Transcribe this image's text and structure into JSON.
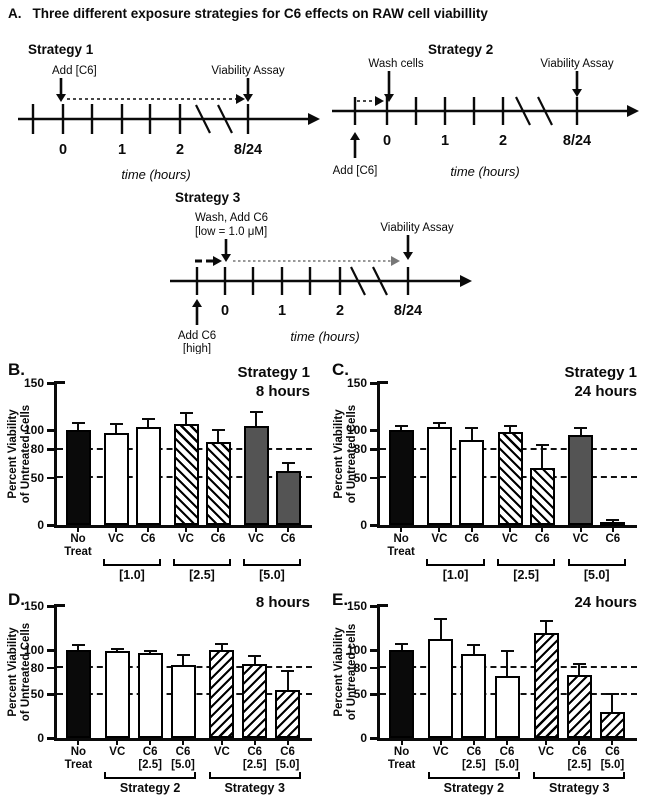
{
  "colors": {
    "bar_gray": "#545454",
    "ink": "#0a0a0a",
    "dotted_arrow_gray": "#777777"
  },
  "figure": {
    "panel_a": {
      "letter": "A.",
      "title": "Three different exposure strategies for C6 effects on RAW cell viabillity",
      "strategy1": {
        "name": "Strategy 1",
        "add_label": "Add [C6]",
        "assay_label": "Viability Assay",
        "ticks": [
          "0",
          "1",
          "2",
          "8/24"
        ],
        "xlabel": "time (hours)"
      },
      "strategy2": {
        "name": "Strategy 2",
        "wash_label": "Wash cells",
        "add_label": "Add [C6]",
        "assay_label": "Viability Assay",
        "ticks": [
          "0",
          "1",
          "2",
          "8/24"
        ],
        "xlabel": "time (hours)"
      },
      "strategy3": {
        "name": "Strategy 3",
        "wash_label_line1": "Wash, Add C6",
        "wash_label_line2": "[low = 1.0 μM]",
        "add_label_line1": "Add C6",
        "add_label_line2": "[high]",
        "assay_label": "Viability Assay",
        "ticks": [
          "0",
          "1",
          "2",
          "8/24"
        ],
        "xlabel": "time (hours)"
      }
    }
  },
  "chart_data": [
    {
      "id": "B",
      "type": "bar",
      "panel_label": "B.",
      "title_lines": [
        "Strategy 1",
        "8 hours"
      ],
      "ylabel_lines": [
        "Percent Viability",
        "of Untreated Cells"
      ],
      "ylim": [
        0,
        150
      ],
      "yticks": [
        0,
        50,
        80,
        100,
        150
      ],
      "dashed_gridlines": [
        50,
        80
      ],
      "grid": "dashed-at-50-and-80",
      "legend": "none",
      "categories": [
        "No Treat",
        "VC [1.0]",
        "C6 [1.0]",
        "VC [2.5]",
        "C6 [2.5]",
        "VC [5.0]",
        "C6 [5.0]"
      ],
      "bars": [
        {
          "label_lines": [
            "No",
            "Treat"
          ],
          "value": 100,
          "err": 9,
          "fill": "black",
          "group": 0
        },
        {
          "label_lines": [
            "VC"
          ],
          "value": 97,
          "err": 11,
          "fill": "white",
          "group": 1
        },
        {
          "label_lines": [
            "C6"
          ],
          "value": 104,
          "err": 9,
          "fill": "white",
          "group": 1
        },
        {
          "label_lines": [
            "VC"
          ],
          "value": 107,
          "err": 12,
          "fill": "hatch-back",
          "group": 2
        },
        {
          "label_lines": [
            "C6"
          ],
          "value": 88,
          "err": 13,
          "fill": "hatch-back",
          "group": 2
        },
        {
          "label_lines": [
            "VC"
          ],
          "value": 105,
          "err": 15,
          "fill": "gray",
          "group": 3
        },
        {
          "label_lines": [
            "C6"
          ],
          "value": 57,
          "err": 10,
          "fill": "gray",
          "group": 3
        }
      ],
      "brackets": [
        {
          "from": 1,
          "to": 2,
          "label": "[1.0]"
        },
        {
          "from": 3,
          "to": 4,
          "label": "[2.5]"
        },
        {
          "from": 5,
          "to": 6,
          "label": "[5.0]"
        }
      ]
    },
    {
      "id": "C",
      "type": "bar",
      "panel_label": "C.",
      "title_lines": [
        "Strategy 1",
        "24 hours"
      ],
      "ylabel_lines": [
        "Percent Viability",
        "of Untreated Cells"
      ],
      "ylim": [
        0,
        150
      ],
      "yticks": [
        0,
        50,
        80,
        100,
        150
      ],
      "dashed_gridlines": [
        50,
        80
      ],
      "grid": "dashed-at-50-and-80",
      "legend": "none",
      "categories": [
        "No Treat",
        "VC [1.0]",
        "C6 [1.0]",
        "VC [2.5]",
        "C6 [2.5]",
        "VC [5.0]",
        "C6 [5.0]"
      ],
      "bars": [
        {
          "label_lines": [
            "No",
            "Treat"
          ],
          "value": 100,
          "err": 6,
          "fill": "black",
          "group": 0
        },
        {
          "label_lines": [
            "VC"
          ],
          "value": 104,
          "err": 5,
          "fill": "white",
          "group": 1
        },
        {
          "label_lines": [
            "C6"
          ],
          "value": 90,
          "err": 13,
          "fill": "white",
          "group": 1
        },
        {
          "label_lines": [
            "VC"
          ],
          "value": 98,
          "err": 8,
          "fill": "hatch-back",
          "group": 2
        },
        {
          "label_lines": [
            "C6"
          ],
          "value": 60,
          "err": 26,
          "fill": "hatch-back",
          "group": 2
        },
        {
          "label_lines": [
            "VC"
          ],
          "value": 95,
          "err": 8,
          "fill": "gray",
          "group": 3
        },
        {
          "label_lines": [
            "C6"
          ],
          "value": 2,
          "err": 3,
          "fill": "gray",
          "group": 3
        }
      ],
      "brackets": [
        {
          "from": 1,
          "to": 2,
          "label": "[1.0]"
        },
        {
          "from": 3,
          "to": 4,
          "label": "[2.5]"
        },
        {
          "from": 5,
          "to": 6,
          "label": "[5.0]"
        }
      ]
    },
    {
      "id": "D",
      "type": "bar",
      "panel_label": "D.",
      "title_lines": [
        "8 hours"
      ],
      "ylabel_lines": [
        "Percent Viability",
        "of Untreated Cells"
      ],
      "ylim": [
        0,
        150
      ],
      "yticks": [
        0,
        50,
        80,
        100,
        150
      ],
      "dashed_gridlines": [
        50,
        80
      ],
      "grid": "dashed-at-50-and-80",
      "legend": "none",
      "categories": [
        "No Treat",
        "VC S2",
        "C6 [2.5] S2",
        "C6 [5.0] S2",
        "VC S3",
        "C6 [2.5] S3",
        "C6 [5.0] S3"
      ],
      "bars": [
        {
          "label_lines": [
            "No",
            "Treat"
          ],
          "value": 100,
          "err": 7,
          "fill": "black",
          "group": 0
        },
        {
          "label_lines": [
            "VC"
          ],
          "value": 99,
          "err": 3,
          "fill": "white",
          "group": 1
        },
        {
          "label_lines": [
            "C6",
            "[2.5]"
          ],
          "value": 97,
          "err": 3,
          "fill": "white",
          "group": 1
        },
        {
          "label_lines": [
            "C6",
            "[5.0]"
          ],
          "value": 83,
          "err": 12,
          "fill": "white",
          "group": 1
        },
        {
          "label_lines": [
            "VC"
          ],
          "value": 100,
          "err": 8,
          "fill": "hatch-fwd",
          "group": 2
        },
        {
          "label_lines": [
            "C6",
            "[2.5]"
          ],
          "value": 84,
          "err": 10,
          "fill": "hatch-fwd",
          "group": 2
        },
        {
          "label_lines": [
            "C6",
            "[5.0]"
          ],
          "value": 55,
          "err": 22,
          "fill": "hatch-fwd",
          "group": 2
        }
      ],
      "brackets": [
        {
          "from": 1,
          "to": 3,
          "label": "Strategy 2"
        },
        {
          "from": 4,
          "to": 6,
          "label": "Strategy 3"
        }
      ]
    },
    {
      "id": "E",
      "type": "bar",
      "panel_label": "E.",
      "title_lines": [
        "24 hours"
      ],
      "ylabel_lines": [
        "Percent Viability",
        "of Untreated cells"
      ],
      "ylim": [
        0,
        150
      ],
      "yticks": [
        0,
        50,
        80,
        100,
        150
      ],
      "dashed_gridlines": [
        50,
        80
      ],
      "grid": "dashed-at-50-and-80",
      "legend": "none",
      "categories": [
        "No Treat",
        "VC S2",
        "C6 [2.5] S2",
        "C6 [5.0] S2",
        "VC S3",
        "C6 [2.5] S3",
        "C6 [5.0] S3"
      ],
      "bars": [
        {
          "label_lines": [
            "No",
            "Treat"
          ],
          "value": 100,
          "err": 8,
          "fill": "black",
          "group": 0
        },
        {
          "label_lines": [
            "VC"
          ],
          "value": 113,
          "err": 23,
          "fill": "white",
          "group": 1
        },
        {
          "label_lines": [
            "C6",
            "[2.5]"
          ],
          "value": 95,
          "err": 12,
          "fill": "white",
          "group": 1
        },
        {
          "label_lines": [
            "C6",
            "[5.0]"
          ],
          "value": 71,
          "err": 29,
          "fill": "white",
          "group": 1
        },
        {
          "label_lines": [
            "VC"
          ],
          "value": 119,
          "err": 15,
          "fill": "hatch-fwd",
          "group": 2
        },
        {
          "label_lines": [
            "C6",
            "[2.5]"
          ],
          "value": 72,
          "err": 13,
          "fill": "hatch-fwd",
          "group": 2
        },
        {
          "label_lines": [
            "C6",
            "[5.0]"
          ],
          "value": 29,
          "err": 22,
          "fill": "hatch-fwd",
          "group": 2
        }
      ],
      "brackets": [
        {
          "from": 1,
          "to": 3,
          "label": "Strategy 2"
        },
        {
          "from": 4,
          "to": 6,
          "label": "Strategy 3"
        }
      ]
    }
  ]
}
